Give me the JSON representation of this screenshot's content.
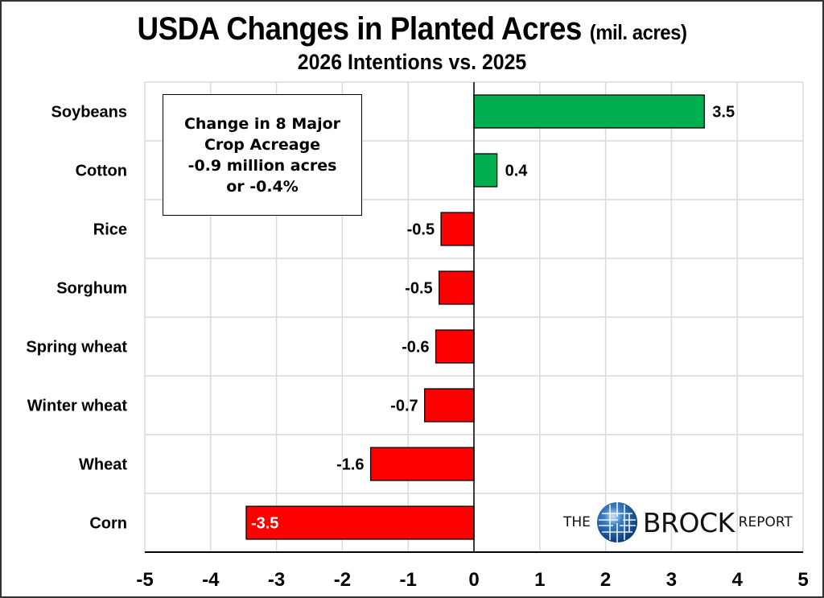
{
  "chart_data": {
    "type": "bar",
    "orientation": "horizontal",
    "title": "USDA Changes in Planted Acres",
    "title_unit": "(mil. acres)",
    "subtitle": "2026 Intentions vs. 2025",
    "xlabel": "",
    "ylabel": "",
    "xlim": [
      -5,
      5
    ],
    "xticks": [
      -5,
      -4,
      -3,
      -2,
      -1,
      0,
      1,
      2,
      3,
      4,
      5
    ],
    "grid": true,
    "categories": [
      "Soybeans",
      "Cotton",
      "Rice",
      "Sorghum",
      "Spring wheat",
      "Winter wheat",
      "Wheat",
      "Corn"
    ],
    "values": [
      3.5,
      0.35,
      -0.5,
      -0.53,
      -0.58,
      -0.75,
      -1.57,
      -3.46
    ],
    "value_labels": [
      "3.5",
      "0.4",
      "-0.5",
      "-0.5",
      "-0.6",
      "-0.7",
      "-1.6",
      "-3.5"
    ],
    "colors": {
      "positive": "#00B050",
      "negative": "#FF0000",
      "grid": "#D9D9D9"
    },
    "annotation": {
      "lines": [
        "Change in 8 Major",
        "Crop Acreage",
        "-0.9 million acres",
        "or -0.4%"
      ]
    }
  },
  "logo": {
    "the": "THE",
    "brock": "BROCK",
    "report": "REPORT"
  }
}
